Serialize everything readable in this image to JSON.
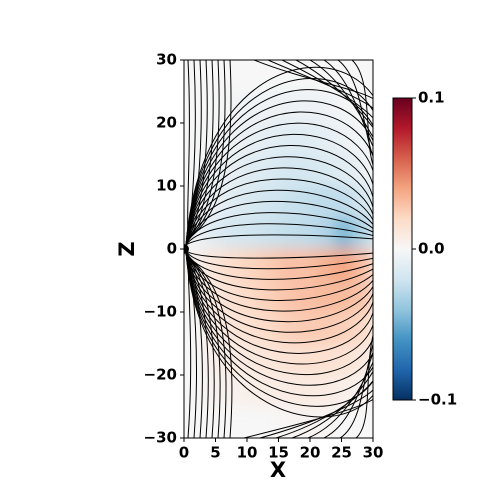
{
  "chart_data": {
    "type": "heatmap",
    "xlabel": "X",
    "ylabel": "Z",
    "xlim": [
      0,
      30
    ],
    "ylim": [
      -30,
      30
    ],
    "xticks": [
      0,
      5,
      10,
      15,
      20,
      25,
      30
    ],
    "yticks": [
      {
        "value": -30,
        "label": "−30"
      },
      {
        "value": -20,
        "label": "−20"
      },
      {
        "value": -10,
        "label": "−10"
      },
      0,
      10,
      20,
      30
    ],
    "colorbar": {
      "lim": [
        -0.1,
        0.1
      ],
      "ticks": [
        {
          "value": -0.1,
          "label": "−0.1"
        },
        {
          "value": 0,
          "label": "0.0"
        },
        0.1
      ],
      "colormap": [
        "#053061",
        "#2166ac",
        "#4393c3",
        "#92c5de",
        "#d1e5f0",
        "#f7f7f7",
        "#fddbc7",
        "#f4a582",
        "#d6604d",
        "#b2182b",
        "#67001f"
      ]
    },
    "field": {
      "x": [
        1.5,
        4.5,
        7.5,
        10.5,
        13.5,
        16.5,
        19.5,
        22.5,
        25.5,
        28.5
      ],
      "y": [
        27.5,
        22.5,
        17.5,
        12.5,
        7.5,
        2.5,
        -2.5,
        -7.5,
        -12.5,
        -17.5,
        -22.5,
        -27.5
      ],
      "values": [
        [
          0,
          0,
          0,
          0,
          0,
          0,
          0,
          0,
          0,
          0
        ],
        [
          0,
          0,
          -0.002,
          -0.004,
          -0.005,
          -0.006,
          -0.006,
          -0.004,
          -0.002,
          0
        ],
        [
          0,
          -0.002,
          -0.005,
          -0.008,
          -0.01,
          -0.012,
          -0.012,
          -0.01,
          -0.006,
          -0.002
        ],
        [
          0,
          -0.004,
          -0.008,
          -0.012,
          -0.015,
          -0.018,
          -0.018,
          -0.016,
          -0.012,
          -0.006
        ],
        [
          0,
          -0.006,
          -0.012,
          -0.016,
          -0.02,
          -0.022,
          -0.024,
          -0.026,
          -0.025,
          -0.018
        ],
        [
          -0.004,
          -0.012,
          -0.018,
          -0.02,
          -0.022,
          -0.024,
          -0.026,
          -0.03,
          -0.045,
          -0.03
        ],
        [
          0.004,
          0.012,
          0.018,
          0.022,
          0.026,
          0.03,
          0.03,
          0.035,
          0.04,
          0.03
        ],
        [
          0.002,
          0.01,
          0.016,
          0.02,
          0.024,
          0.028,
          0.03,
          0.032,
          0.032,
          0.028
        ],
        [
          0,
          0.008,
          0.012,
          0.016,
          0.02,
          0.024,
          0.026,
          0.026,
          0.024,
          0.02
        ],
        [
          0,
          0.005,
          0.008,
          0.01,
          0.012,
          0.014,
          0.016,
          0.016,
          0.014,
          0.01
        ],
        [
          0,
          0.003,
          0.004,
          0.006,
          0.007,
          0.008,
          0.009,
          0.008,
          0.006,
          0.003
        ],
        [
          0,
          0,
          0,
          0,
          0,
          0.002,
          0.003,
          0.002,
          0,
          0
        ]
      ]
    }
  }
}
